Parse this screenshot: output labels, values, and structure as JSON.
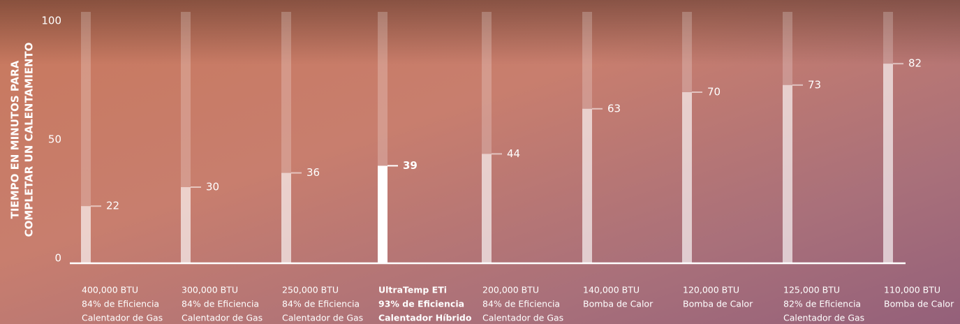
{
  "chart_data": {
    "type": "bar",
    "y_label": [
      "TIEMPO EN MINUTOS PARA",
      "COMPLETAR UN CALENTAMIENTO"
    ],
    "categories": [
      [
        "400,000 BTU",
        "84% de Eficiencia",
        "Calentador de Gas"
      ],
      [
        "300,000 BTU",
        "84% de Eficiencia",
        "Calentador de Gas"
      ],
      [
        "250,000 BTU",
        "84% de Eficiencia",
        "Calentador de Gas"
      ],
      [
        "UltraTemp ETi",
        "93% de Eficiencia",
        "Calentador Híbrido"
      ],
      [
        "200,000 BTU",
        "84% de Eficiencia",
        "Calentador de Gas"
      ],
      [
        "140,000 BTU",
        "Bomba de Calor"
      ],
      [
        "120,000 BTU",
        "Bomba de Calor"
      ],
      [
        "125,000 BTU",
        "82% de Eficiencia",
        "Calentador de Gas"
      ],
      [
        "110,000 BTU",
        "Bomba de Calor"
      ]
    ],
    "values": [
      22,
      30,
      36,
      39,
      44,
      63,
      70,
      73,
      82
    ],
    "color": "rgba(255,255,255,0.55)",
    "highlight": 3,
    "highlight_color": "#ffffff",
    "ylim": [
      0,
      100
    ],
    "yticks": [
      0,
      50,
      100
    ]
  }
}
